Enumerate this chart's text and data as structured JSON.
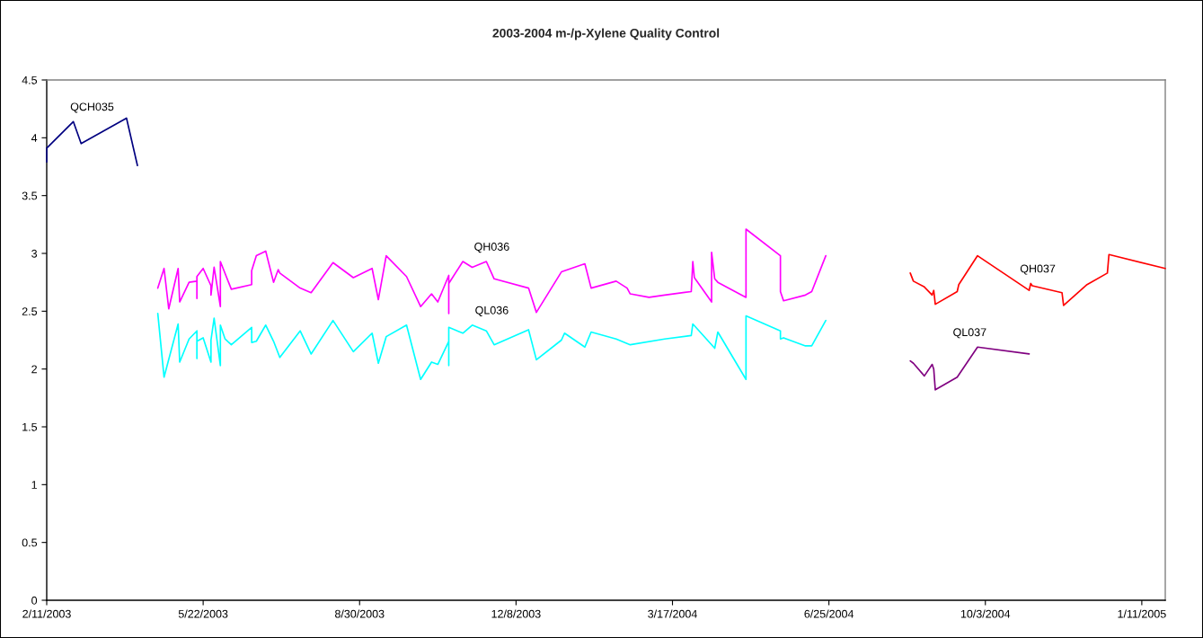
{
  "chart_data": {
    "type": "line",
    "title": "2003-2004 m-/p-Xylene Quality Control",
    "xlim": [
      "2003-02-11",
      "2005-01-26"
    ],
    "xticks": [
      {
        "value": "2003-02-11",
        "label": "2/11/2003"
      },
      {
        "value": "2003-05-22",
        "label": "5/22/2003"
      },
      {
        "value": "2003-08-30",
        "label": "8/30/2003"
      },
      {
        "value": "2003-12-08",
        "label": "12/8/2003"
      },
      {
        "value": "2004-03-17",
        "label": "3/17/2004"
      },
      {
        "value": "2004-06-25",
        "label": "6/25/2004"
      },
      {
        "value": "2004-10-03",
        "label": "10/3/2004"
      },
      {
        "value": "2005-01-11",
        "label": "1/11/2005"
      }
    ],
    "ylim": [
      0,
      4.5
    ],
    "yticks": [
      0,
      0.5,
      1,
      1.5,
      2,
      2.5,
      3,
      3.5,
      4,
      4.5
    ],
    "grid": false,
    "marker": "none",
    "line_style": "solid",
    "series": [
      {
        "name": "QCH035",
        "color": "#000080",
        "x": [
          "2003-02-11",
          "2003-02-11",
          "2003-02-28",
          "2003-03-05",
          "2003-04-03",
          "2003-04-10"
        ],
        "values": [
          3.79,
          3.91,
          4.14,
          3.95,
          4.17,
          3.76
        ]
      },
      {
        "name": "QH036",
        "color": "#ff00ff",
        "x": [
          "2003-04-23",
          "2003-04-27",
          "2003-04-30",
          "2003-05-06",
          "2003-05-07",
          "2003-05-13",
          "2003-05-18",
          "2003-05-18",
          "2003-05-18",
          "2003-05-22",
          "2003-05-27",
          "2003-05-27",
          "2003-05-29",
          "2003-06-02",
          "2003-06-02",
          "2003-06-09",
          "2003-06-22",
          "2003-06-22",
          "2003-06-25",
          "2003-07-01",
          "2003-07-06",
          "2003-07-09",
          "2003-07-10",
          "2003-07-23",
          "2003-07-30",
          "2003-08-13",
          "2003-08-26",
          "2003-09-07",
          "2003-09-11",
          "2003-09-16",
          "2003-09-29",
          "2003-10-08",
          "2003-10-15",
          "2003-10-19",
          "2003-10-26",
          "2003-10-26",
          "2003-10-26",
          "2003-11-04",
          "2003-11-10",
          "2003-11-19",
          "2003-11-24",
          "2003-12-16",
          "2003-12-21",
          "2004-01-06",
          "2004-01-21",
          "2004-01-25",
          "2004-02-10",
          "2004-02-17",
          "2004-02-19",
          "2004-03-02",
          "2004-03-12",
          "2004-03-29",
          "2004-03-30",
          "2004-03-31",
          "2004-04-11",
          "2004-04-11",
          "2004-04-13",
          "2004-04-15",
          "2004-05-03",
          "2004-05-03",
          "2004-05-25",
          "2004-05-25",
          "2004-05-27",
          "2004-06-10",
          "2004-06-14",
          "2004-06-23"
        ],
        "values": [
          2.7,
          2.87,
          2.52,
          2.87,
          2.58,
          2.75,
          2.76,
          2.61,
          2.8,
          2.87,
          2.72,
          2.64,
          2.88,
          2.54,
          2.93,
          2.69,
          2.73,
          2.85,
          2.98,
          3.02,
          2.75,
          2.86,
          2.83,
          2.7,
          2.66,
          2.92,
          2.79,
          2.87,
          2.6,
          2.98,
          2.8,
          2.54,
          2.65,
          2.58,
          2.81,
          2.48,
          2.74,
          2.93,
          2.88,
          2.93,
          2.78,
          2.7,
          2.49,
          2.84,
          2.91,
          2.7,
          2.76,
          2.7,
          2.65,
          2.62,
          2.64,
          2.67,
          2.93,
          2.79,
          2.58,
          3.01,
          2.78,
          2.75,
          2.62,
          3.21,
          2.98,
          2.67,
          2.59,
          2.64,
          2.67,
          2.98
        ]
      },
      {
        "name": "QL036",
        "color": "#00ffff",
        "x": [
          "2003-04-23",
          "2003-04-27",
          "2003-05-06",
          "2003-05-07",
          "2003-05-13",
          "2003-05-18",
          "2003-05-18",
          "2003-05-18",
          "2003-05-22",
          "2003-05-27",
          "2003-05-27",
          "2003-05-29",
          "2003-06-02",
          "2003-06-02",
          "2003-06-05",
          "2003-06-09",
          "2003-06-22",
          "2003-06-22",
          "2003-06-25",
          "2003-07-01",
          "2003-07-06",
          "2003-07-10",
          "2003-07-23",
          "2003-07-30",
          "2003-08-13",
          "2003-08-26",
          "2003-09-07",
          "2003-09-11",
          "2003-09-16",
          "2003-09-29",
          "2003-10-08",
          "2003-10-15",
          "2003-10-19",
          "2003-10-26",
          "2003-10-26",
          "2003-10-26",
          "2003-11-04",
          "2003-11-10",
          "2003-11-19",
          "2003-11-24",
          "2003-12-16",
          "2003-12-21",
          "2004-01-06",
          "2004-01-08",
          "2004-01-21",
          "2004-01-25",
          "2004-02-10",
          "2004-02-19",
          "2004-03-12",
          "2004-03-29",
          "2004-03-30",
          "2004-04-13",
          "2004-04-15",
          "2004-05-03",
          "2004-05-03",
          "2004-05-25",
          "2004-05-25",
          "2004-05-27",
          "2004-06-10",
          "2004-06-14",
          "2004-06-23"
        ],
        "values": [
          2.48,
          1.93,
          2.39,
          2.06,
          2.26,
          2.33,
          2.09,
          2.24,
          2.27,
          2.06,
          2.25,
          2.44,
          2.03,
          2.38,
          2.26,
          2.21,
          2.36,
          2.23,
          2.24,
          2.38,
          2.24,
          2.1,
          2.33,
          2.13,
          2.42,
          2.15,
          2.31,
          2.05,
          2.28,
          2.38,
          1.91,
          2.06,
          2.04,
          2.24,
          2.03,
          2.36,
          2.31,
          2.38,
          2.33,
          2.21,
          2.34,
          2.08,
          2.25,
          2.31,
          2.19,
          2.32,
          2.26,
          2.21,
          2.26,
          2.29,
          2.39,
          2.18,
          2.32,
          1.91,
          2.46,
          2.33,
          2.26,
          2.27,
          2.2,
          2.2,
          2.42
        ]
      },
      {
        "name": "QH037",
        "color": "#ff0000",
        "x": [
          "2004-08-16",
          "2004-08-18",
          "2004-08-25",
          "2004-08-30",
          "2004-08-31",
          "2004-09-01",
          "2004-09-15",
          "2004-09-16",
          "2004-09-28",
          "2004-10-31",
          "2004-11-01",
          "2004-11-02",
          "2004-11-21",
          "2004-11-22",
          "2004-12-07",
          "2004-12-20",
          "2004-12-21",
          "2005-01-26"
        ],
        "values": [
          2.83,
          2.76,
          2.71,
          2.64,
          2.68,
          2.56,
          2.67,
          2.73,
          2.98,
          2.68,
          2.74,
          2.72,
          2.66,
          2.55,
          2.73,
          2.83,
          2.99,
          2.87
        ]
      },
      {
        "name": "QL037",
        "color": "#800080",
        "x": [
          "2004-08-16",
          "2004-08-18",
          "2004-08-25",
          "2004-08-30",
          "2004-08-31",
          "2004-09-01",
          "2004-09-15",
          "2004-09-28",
          "2004-10-31"
        ],
        "values": [
          2.07,
          2.05,
          1.94,
          2.04,
          2.0,
          1.82,
          1.93,
          2.19,
          2.13
        ]
      }
    ]
  }
}
